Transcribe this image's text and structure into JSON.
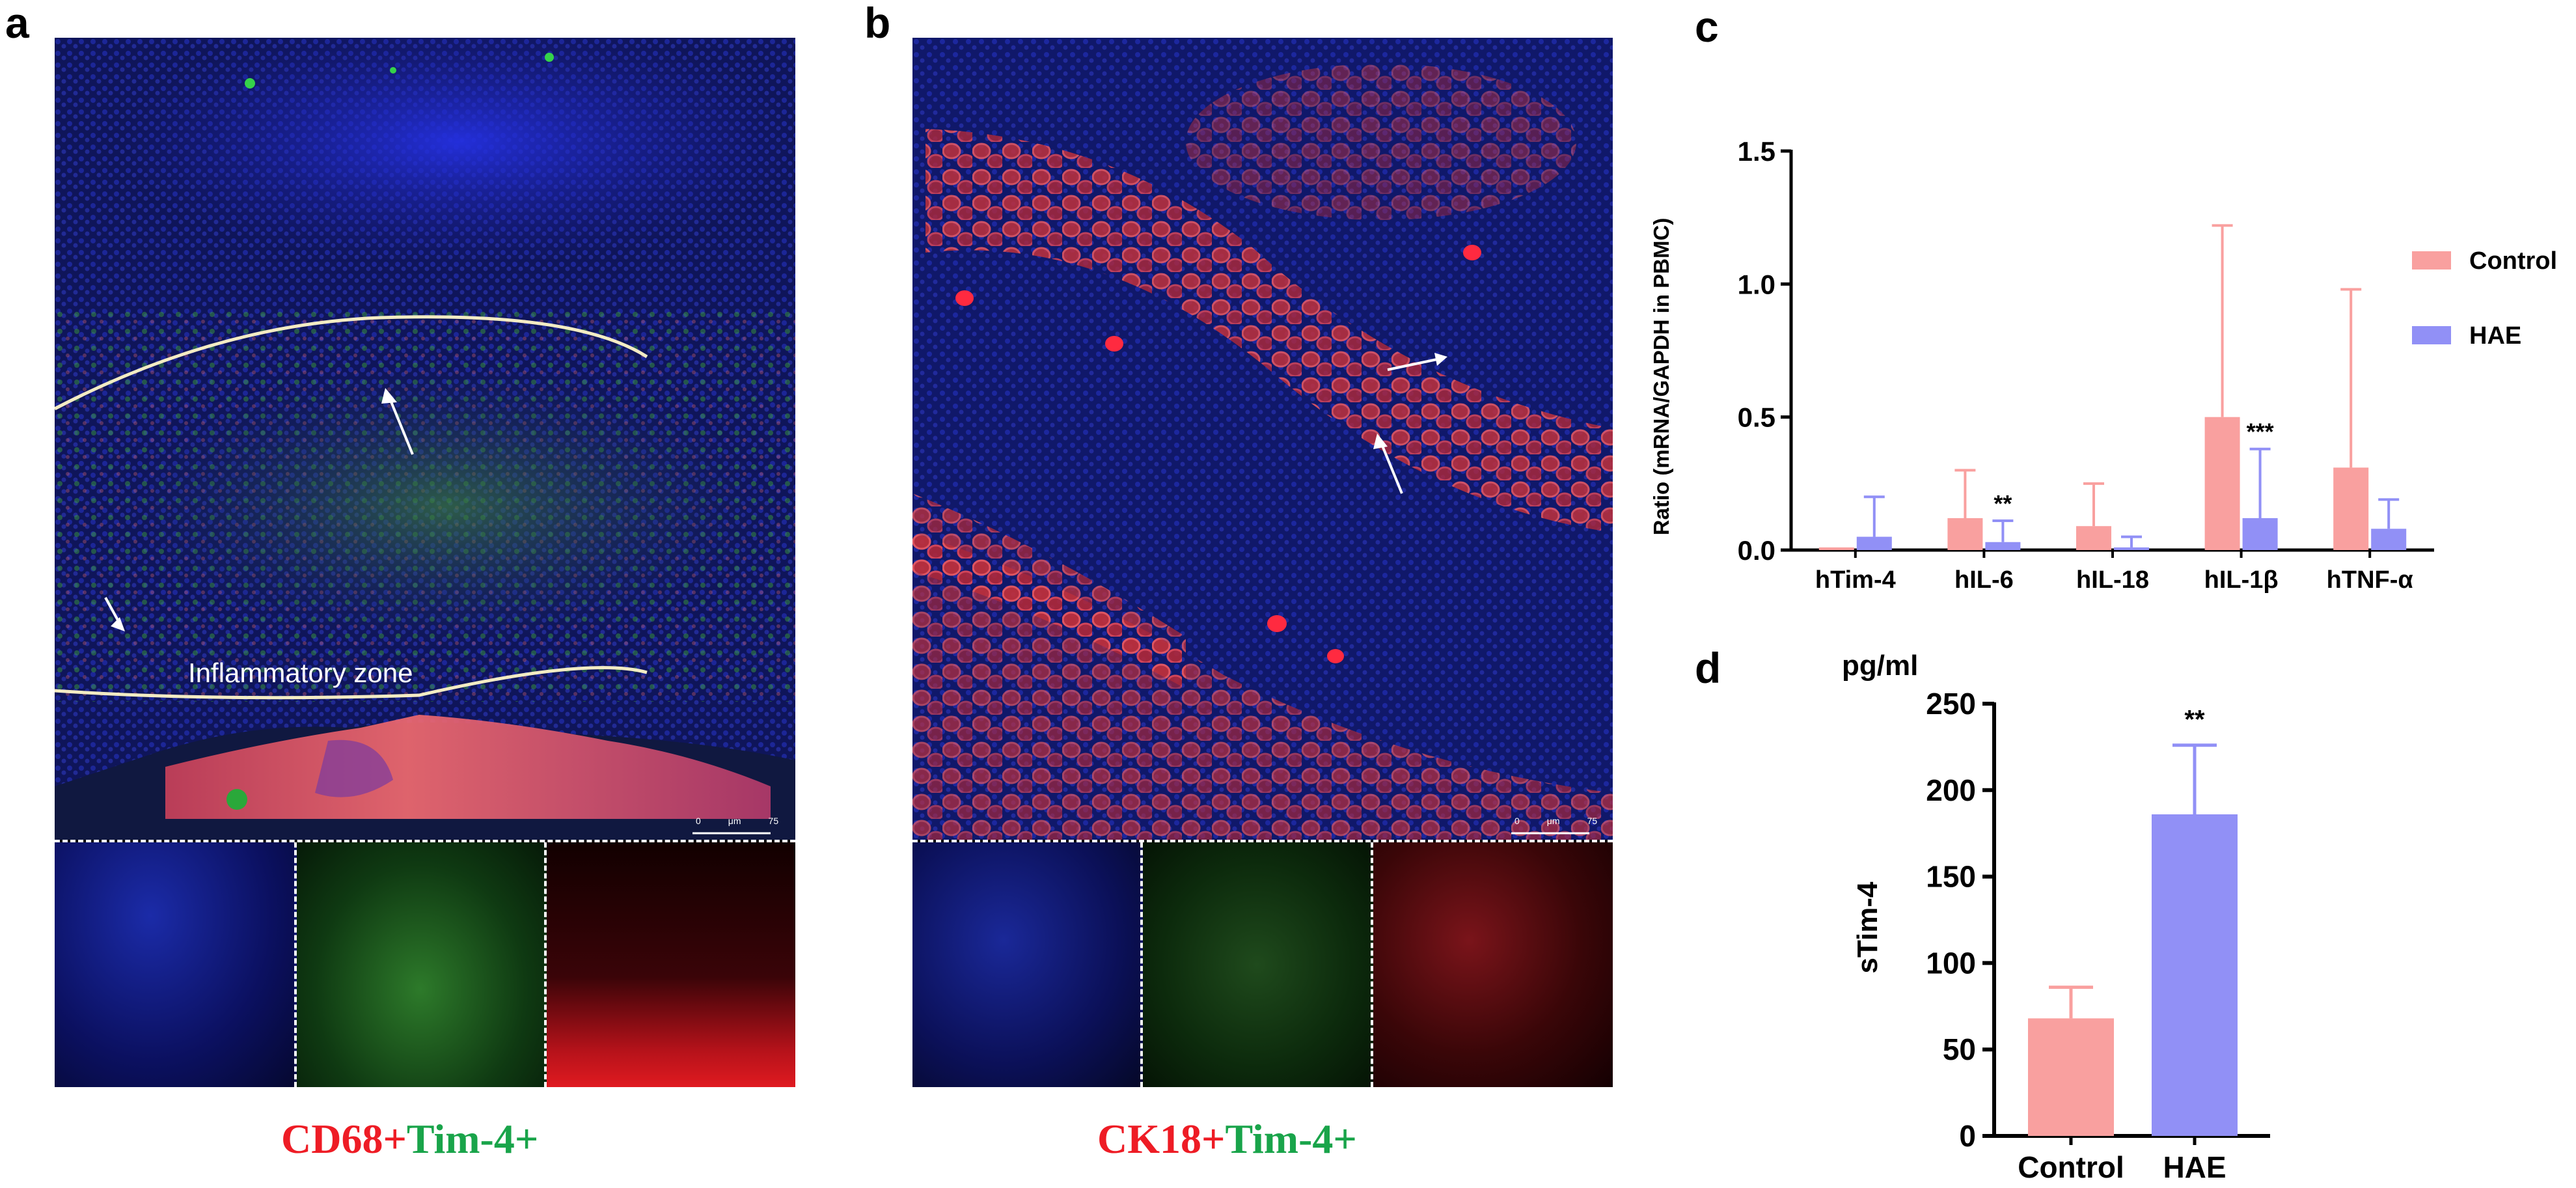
{
  "panels": {
    "a": {
      "letter": "a",
      "zone_label": "Inflammatory zone",
      "scale_bar": {
        "zero": "0",
        "unit": "μm",
        "value": "75"
      },
      "caption": {
        "part1": "CD68+",
        "part2": "Tim-4+"
      }
    },
    "b": {
      "letter": "b",
      "scale_bar": {
        "zero": "0",
        "unit": "μm",
        "value": "75"
      },
      "caption": {
        "part1": "CK18+",
        "part2": "Tim-4+"
      }
    },
    "c": {
      "letter": "c"
    },
    "d": {
      "letter": "d"
    }
  },
  "colors": {
    "control": "#f9a09f",
    "hae": "#9190f6",
    "caption_red": "#ee1c25",
    "caption_green": "#19a44a"
  },
  "chart_data": [
    {
      "id": "c",
      "type": "bar",
      "ylabel": "Ratio (mRNA/GAPDH in PBMC)",
      "ylim": [
        0,
        1.5
      ],
      "yticks": [
        "0.0",
        "0.5",
        "1.0",
        "1.5"
      ],
      "categories": [
        "hTim-4",
        "hIL-6",
        "hIL-18",
        "hIL-1β",
        "hTNF-α"
      ],
      "series": [
        {
          "name": "Control",
          "values": [
            0.01,
            0.12,
            0.09,
            0.5,
            0.31
          ],
          "error": [
            0.0,
            0.18,
            0.16,
            0.72,
            0.67
          ]
        },
        {
          "name": "HAE",
          "values": [
            0.05,
            0.03,
            0.01,
            0.12,
            0.08
          ],
          "error": [
            0.15,
            0.08,
            0.04,
            0.26,
            0.11
          ]
        }
      ],
      "annotations": [
        {
          "category": "hIL-6",
          "text": "**"
        },
        {
          "category": "hIL-1β",
          "text": "***"
        }
      ],
      "legend_position": "right",
      "grid": false
    },
    {
      "id": "d",
      "type": "bar",
      "unit_label": "pg/ml",
      "ylabel": "sTim-4",
      "ylim": [
        0,
        250
      ],
      "yticks": [
        "0",
        "50",
        "100",
        "150",
        "200",
        "250"
      ],
      "categories": [
        "Control",
        "HAE"
      ],
      "values": [
        68,
        186
      ],
      "error": [
        18,
        40
      ],
      "annotations": [
        {
          "category": "HAE",
          "text": "**"
        }
      ],
      "grid": false
    }
  ]
}
